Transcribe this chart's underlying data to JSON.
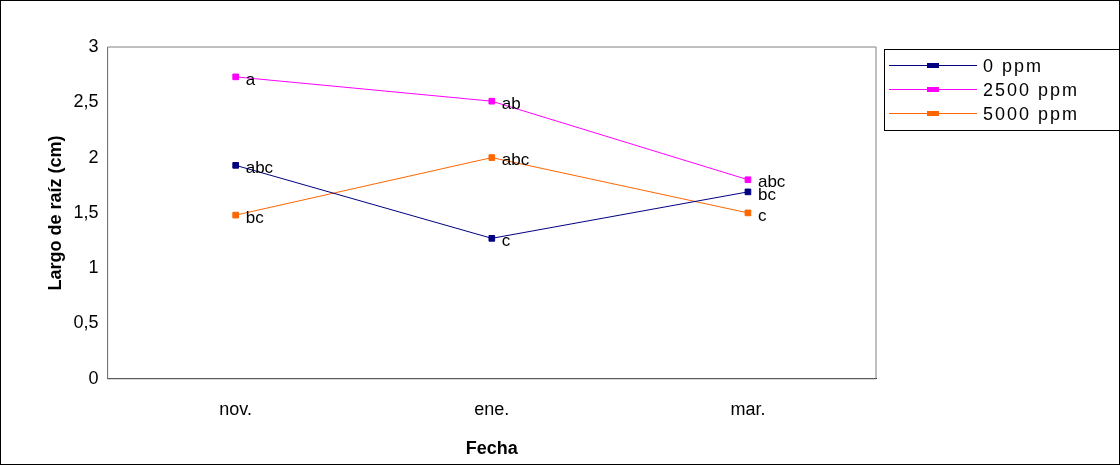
{
  "chart_data": {
    "type": "line",
    "xlabel": "Fecha",
    "ylabel": "Largo de raíz (cm)",
    "categories": [
      "nov.",
      "ene.",
      "mar."
    ],
    "series": [
      {
        "name": "0 ppm",
        "color": "#000080",
        "values": [
          1.93,
          1.27,
          1.69
        ]
      },
      {
        "name": "2500 ppm",
        "color": "#ff00ff",
        "values": [
          2.73,
          2.51,
          1.8
        ]
      },
      {
        "name": "5000 ppm",
        "color": "#ff6600",
        "values": [
          1.48,
          2.0,
          1.5
        ]
      }
    ],
    "ylim": [
      0,
      3
    ],
    "yticks": [
      0,
      {
        "value": 0.5,
        "label": "0,5"
      },
      1,
      {
        "value": 1.5,
        "label": "1,5"
      },
      2,
      {
        "value": 2.5,
        "label": "2,5"
      },
      3
    ],
    "grid": false,
    "legend": "top right",
    "marker": "square",
    "line_style": "solid",
    "annotations": [
      {
        "text": "abc",
        "x": "nov.",
        "y": 1.93
      },
      {
        "text": "c",
        "x": "ene.",
        "y": 1.27
      },
      {
        "text": "bc",
        "x": "mar.",
        "y": 1.69
      },
      {
        "text": "a",
        "x": "nov.",
        "y": 2.73
      },
      {
        "text": "ab",
        "x": "ene.",
        "y": 2.51
      },
      {
        "text": "abc",
        "x": "mar.",
        "y": 1.8
      },
      {
        "text": "bc",
        "x": "nov.",
        "y": 1.48
      },
      {
        "text": "abc",
        "x": "ene.",
        "y": 2.0
      },
      {
        "text": "c",
        "x": "mar.",
        "y": 1.5
      }
    ]
  }
}
